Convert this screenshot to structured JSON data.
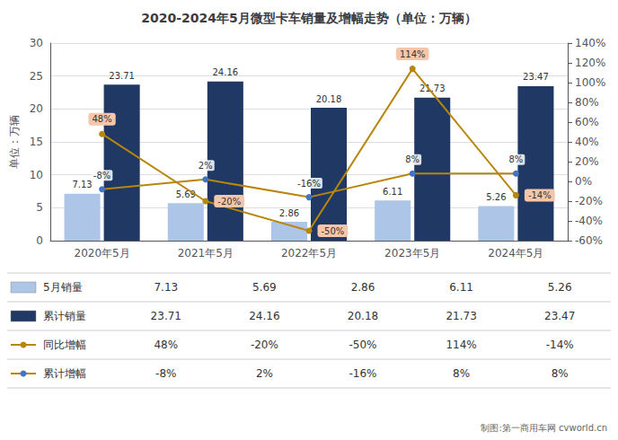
{
  "chart_data": {
    "type": "bar",
    "title": "2020-2024年5月微型卡车销量及增幅走势（单位：万辆）",
    "categories": [
      "2020年5月",
      "2021年5月",
      "2022年5月",
      "2023年5月",
      "2024年5月"
    ],
    "ylabel": "单位：万辆",
    "series": [
      {
        "name": "5月销量",
        "type": "bar",
        "color": "#adc6e8",
        "values": [
          7.13,
          5.69,
          2.86,
          6.11,
          5.26
        ]
      },
      {
        "name": "累计销量",
        "type": "bar",
        "color": "#1f3864",
        "values": [
          23.71,
          24.16,
          20.18,
          21.73,
          23.47
        ]
      },
      {
        "name": "同比增幅",
        "type": "line",
        "color": "#b8860b",
        "marker": "circle",
        "axis": "y2",
        "values": [
          0.48,
          -0.2,
          -0.5,
          1.14,
          -0.14
        ],
        "value_labels": [
          "48%",
          "-20%",
          "-50%",
          "114%",
          "-14%"
        ]
      },
      {
        "name": "累计增幅",
        "type": "line",
        "color": "#b8860b",
        "colors": [
          "#4472c4",
          "#4472c4",
          "#4472c4",
          "#4472c4",
          "#4472c4"
        ],
        "marker": "circle",
        "axis": "y2",
        "values": [
          -0.08,
          0.02,
          -0.16,
          0.08,
          0.08
        ],
        "value_labels": [
          "-8%",
          "2%",
          "-16%",
          "8%",
          "8%"
        ]
      }
    ],
    "ylim": [
      0,
      30
    ],
    "yticks": [
      0,
      5,
      10,
      15,
      20,
      25,
      30
    ],
    "y2lim": [
      -0.6,
      1.4
    ],
    "y2ticks": [
      {
        "value": -0.6,
        "label": "-60%"
      },
      {
        "value": -0.4,
        "label": "-40%"
      },
      {
        "value": -0.2,
        "label": "-20%"
      },
      {
        "value": 0.0,
        "label": "0%"
      },
      {
        "value": 0.2,
        "label": "20%"
      },
      {
        "value": 0.4,
        "label": "40%"
      },
      {
        "value": 0.6,
        "label": "60%"
      },
      {
        "value": 0.8,
        "label": "80%"
      },
      {
        "value": 1.0,
        "label": "100%"
      },
      {
        "value": 1.2,
        "label": "120%"
      },
      {
        "value": 1.4,
        "label": "140%"
      }
    ],
    "grid": true,
    "legend": "bottom",
    "data_labels": true,
    "annotations": [
      "制图:第一商用车网 cvworld.cn"
    ]
  }
}
